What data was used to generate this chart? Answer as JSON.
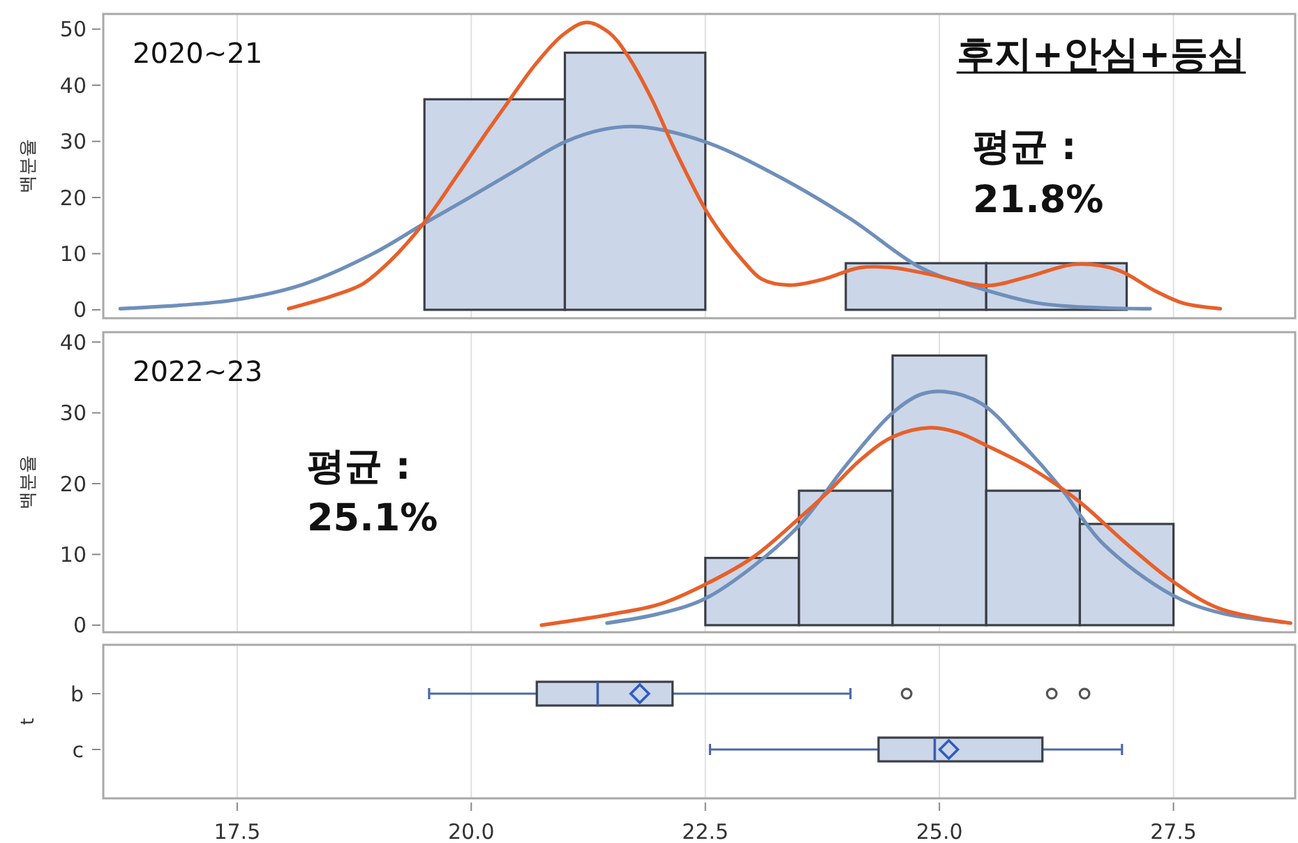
{
  "chart_data": [
    {
      "type": "histogram",
      "title": "후지+안심+등심",
      "ylabel": "백분율",
      "annotations": [
        "2020~21",
        "평균 :\n21.8%"
      ],
      "series": [
        {
          "type": "histogram",
          "color": "#cbd6e8",
          "bins": [
            19.5,
            21,
            22.5,
            24,
            25.5,
            27
          ],
          "values": [
            37.5,
            45.8,
            0,
            8.3,
            8.3
          ]
        },
        {
          "type": "line",
          "color": "#6f8fba",
          "x": [
            16.25,
            17.45,
            18.2,
            18.95,
            19.5,
            19.95,
            20.45,
            21.0,
            21.4,
            21.8,
            22.5,
            23.3,
            24.05,
            24.8,
            25.3,
            26.05,
            26.8,
            27.25
          ],
          "values": [
            0.2,
            1.7,
            4.5,
            10,
            15.4,
            19.7,
            24.6,
            29.9,
            32.1,
            32.6,
            29.9,
            23.6,
            16.2,
            7.5,
            4.5,
            1.2,
            0.3,
            0.2
          ]
        },
        {
          "type": "line",
          "color": "#e7602a",
          "x": [
            18.05,
            18.54,
            18.84,
            19.14,
            19.49,
            19.84,
            20.18,
            20.41,
            20.68,
            20.98,
            21.23,
            21.47,
            21.67,
            21.92,
            22.17,
            22.5,
            22.7,
            22.9,
            23.1,
            23.4,
            23.75,
            24.15,
            24.5,
            24.9,
            25.5,
            25.95,
            26.45,
            26.9,
            27.3,
            27.6,
            28.0
          ],
          "values": [
            0.2,
            2.6,
            4.6,
            8.8,
            15.4,
            23.7,
            32.0,
            37.4,
            43.6,
            49.0,
            51.2,
            49.4,
            45.3,
            37.8,
            28.7,
            17.9,
            12.9,
            8.8,
            5.5,
            4.4,
            5.4,
            7.5,
            7.5,
            6.3,
            4.3,
            5.9,
            8.1,
            7.1,
            3.4,
            1.2,
            0.2
          ]
        }
      ],
      "xlim": [
        16.07,
        28.8
      ],
      "xticks": [
        17.5,
        20,
        22.5,
        25,
        27.5
      ],
      "ylim": [
        -1.5,
        52.7
      ],
      "yticks": [
        0,
        10,
        20,
        30,
        40,
        50
      ],
      "tick_labels": "y",
      "grid": "x"
    },
    {
      "type": "histogram",
      "ylabel": "백분율",
      "annotations": [
        "2022~23",
        "평균 :\n25.1%"
      ],
      "series": [
        {
          "type": "histogram",
          "color": "#cbd6e8",
          "bins": [
            22.5,
            23.5,
            24.5,
            25.5,
            26.5,
            27.5
          ],
          "values": [
            9.5,
            19.0,
            38.1,
            19.0,
            14.3
          ]
        },
        {
          "type": "line",
          "color": "#6f8fba",
          "x": [
            21.45,
            22.0,
            22.49,
            23.01,
            23.51,
            24.01,
            24.5,
            24.8,
            25.05,
            25.45,
            25.9,
            26.29,
            26.74,
            27.48,
            27.98,
            28.68
          ],
          "values": [
            0.3,
            1.6,
            3.7,
            8.3,
            14.2,
            22.7,
            30.0,
            32.6,
            33.0,
            31.3,
            25.4,
            19.5,
            11.6,
            4.3,
            1.8,
            0.4
          ]
        },
        {
          "type": "line",
          "color": "#e7602a",
          "x": [
            20.75,
            21.52,
            22.02,
            22.49,
            23.01,
            23.51,
            23.81,
            24.16,
            24.5,
            24.9,
            25.2,
            25.5,
            25.99,
            26.49,
            26.99,
            27.48,
            27.98,
            28.75
          ],
          "values": [
            0,
            1.6,
            3.0,
            5.7,
            9.6,
            15.2,
            18.8,
            23.4,
            26.6,
            27.9,
            27.2,
            25.4,
            22.1,
            17.5,
            11.6,
            6.3,
            2.4,
            0.3
          ]
        }
      ],
      "xlim": [
        16.07,
        28.8
      ],
      "xticks": [
        17.5,
        20,
        22.5,
        25,
        27.5
      ],
      "ylim": [
        -1,
        41.4
      ],
      "yticks": [
        0,
        10,
        20,
        30,
        40
      ],
      "tick_labels": "y",
      "grid": "x"
    },
    {
      "type": "box",
      "orientation": "horizontal",
      "ylabel": "t",
      "categories": [
        "b",
        "c"
      ],
      "color": "#cbd6e8",
      "boxes": [
        {
          "low": 19.55,
          "q1": 20.7,
          "median": 21.35,
          "q3": 22.15,
          "high": 24.05,
          "mean": 21.8,
          "outliers": [
            24.65,
            26.2,
            26.55
          ]
        },
        {
          "low": 22.55,
          "q1": 24.35,
          "median": 24.95,
          "q3": 26.1,
          "high": 26.95,
          "mean": 25.1
        }
      ],
      "xlim": [
        16.07,
        28.8
      ],
      "xticks": [
        17.5,
        {
          "value": 20,
          "label": "20.0"
        },
        22.5,
        {
          "value": 25,
          "label": "25.0"
        },
        27.5
      ],
      "grid": "x"
    }
  ]
}
